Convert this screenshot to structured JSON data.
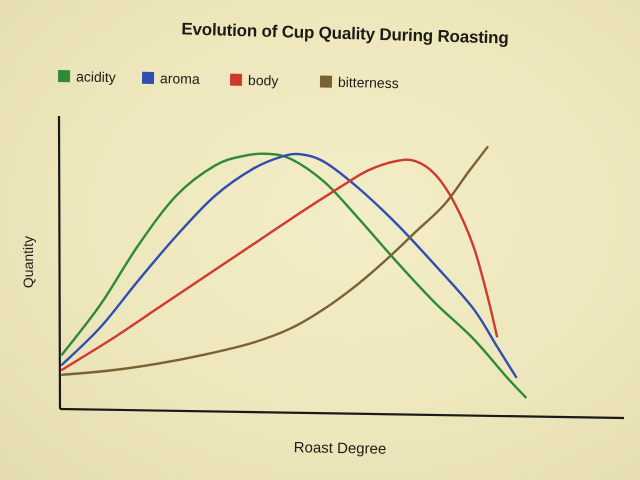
{
  "chart_data": {
    "type": "line",
    "title": "Evolution of Cup Quality During Roasting",
    "xlabel": "Roast Degree",
    "ylabel": "Quantity",
    "grid": false,
    "legend_position": "top-left",
    "xlim": [
      0,
      100
    ],
    "ylim": [
      0,
      100
    ],
    "series": [
      {
        "name": "acidity",
        "color": "#2e8b34",
        "x": [
          0,
          8,
          16,
          24,
          32,
          38,
          43,
          48,
          55,
          62,
          70,
          78,
          86,
          93,
          97
        ],
        "y": [
          18,
          38,
          62,
          82,
          94,
          98,
          99,
          97,
          88,
          74,
          57,
          41,
          27,
          12,
          4
        ]
      },
      {
        "name": "aroma",
        "color": "#2f4fb0",
        "x": [
          0,
          8,
          16,
          24,
          32,
          40,
          46,
          50,
          55,
          62,
          70,
          78,
          86,
          91,
          95
        ],
        "y": [
          14,
          29,
          48,
          66,
          82,
          93,
          98,
          99,
          96,
          86,
          72,
          56,
          39,
          24,
          12
        ]
      },
      {
        "name": "body",
        "color": "#d03a2e",
        "x": [
          0,
          10,
          20,
          30,
          40,
          50,
          58,
          64,
          70,
          74,
          78,
          82,
          86,
          89,
          91
        ],
        "y": [
          12,
          24,
          37,
          50,
          63,
          76,
          86,
          93,
          97,
          97,
          92,
          81,
          64,
          44,
          28
        ]
      },
      {
        "name": "bitterness",
        "color": "#7a6330",
        "x": [
          0,
          10,
          20,
          30,
          40,
          48,
          55,
          62,
          68,
          74,
          80,
          85,
          89
        ],
        "y": [
          10,
          12,
          15,
          19,
          24,
          30,
          38,
          48,
          58,
          69,
          80,
          93,
          103
        ]
      }
    ]
  }
}
